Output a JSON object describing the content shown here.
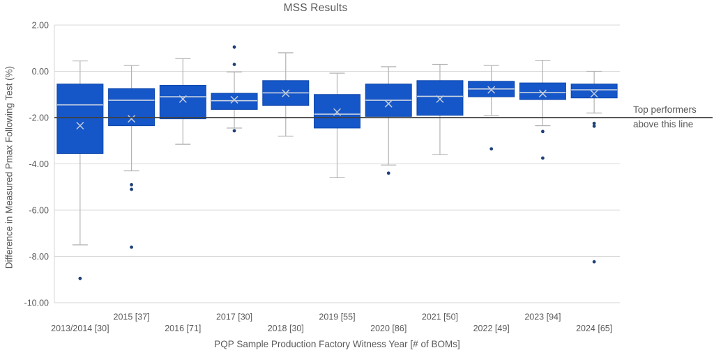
{
  "title": "MSS Results",
  "annotation": {
    "line1": "Top performers",
    "line2": "above this line"
  },
  "colors": {
    "box_fill": "#1556C8",
    "box_border": "#0E47AB",
    "whisker": "#B3B3B3",
    "median_line": "#C9D2E0",
    "mean_marker": "#C4CEDE",
    "outlier": "#1F4179",
    "grid": "#D9D9D9",
    "axis_line": "#D6D6D6",
    "axis_text": "#595959",
    "reference_line": "#404040"
  },
  "chart_data": {
    "type": "boxplot",
    "title": "MSS Results",
    "xlabel": "PQP Sample Production Factory Witness Year [# of BOMs]",
    "ylabel": "Difference in Measured Pmax Following Test (%)",
    "ylim": [
      -10,
      2
    ],
    "yticks": [
      2,
      0,
      -2,
      -4,
      -6,
      -8,
      -10
    ],
    "ytick_labels": [
      "2.00",
      "0.00",
      "-2.00",
      "-4.00",
      "-6.00",
      "-8.00",
      "-10.00"
    ],
    "grid": true,
    "reference_line": {
      "y": -2,
      "label": "Top performers above this line"
    },
    "categories": [
      "2013/2014 [30]",
      "2015 [37]",
      "2016 [71]",
      "2017 [30]",
      "2018 [30]",
      "2019 [55]",
      "2020 [86]",
      "2021 [50]",
      "2022 [49]",
      "2023 [94]",
      "2024 [65]"
    ],
    "series": [
      {
        "category": "2013/2014 [30]",
        "whisker_high": 0.45,
        "q3": -0.55,
        "median": -1.45,
        "mean": -2.35,
        "q1": -3.55,
        "whisker_low": -7.5,
        "outliers": [
          -8.95
        ]
      },
      {
        "category": "2015 [37]",
        "whisker_high": 0.25,
        "q3": -0.75,
        "median": -1.25,
        "mean": -2.05,
        "q1": -2.35,
        "whisker_low": -4.3,
        "outliers": [
          -4.9,
          -5.1,
          -7.6
        ]
      },
      {
        "category": "2016 [71]",
        "whisker_high": 0.55,
        "q3": -0.6,
        "median": -1.1,
        "mean": -1.2,
        "q1": -2.05,
        "whisker_low": -3.15,
        "outliers": []
      },
      {
        "category": "2017 [30]",
        "whisker_high": -0.03,
        "q3": -0.95,
        "median": -1.27,
        "mean": -1.23,
        "q1": -1.65,
        "whisker_low": -2.45,
        "outliers": [
          1.05,
          0.3,
          -2.57
        ]
      },
      {
        "category": "2018 [30]",
        "whisker_high": 0.8,
        "q3": -0.4,
        "median": -0.93,
        "mean": -0.95,
        "q1": -1.47,
        "whisker_low": -2.8,
        "outliers": []
      },
      {
        "category": "2019 [55]",
        "whisker_high": -0.08,
        "q3": -1.0,
        "median": -1.85,
        "mean": -1.76,
        "q1": -2.45,
        "whisker_low": -4.6,
        "outliers": []
      },
      {
        "category": "2020 [86]",
        "whisker_high": 0.2,
        "q3": -0.55,
        "median": -1.25,
        "mean": -1.4,
        "q1": -1.95,
        "whisker_low": -4.05,
        "outliers": [
          -4.4
        ]
      },
      {
        "category": "2021 [50]",
        "whisker_high": 0.3,
        "q3": -0.4,
        "median": -1.08,
        "mean": -1.2,
        "q1": -1.9,
        "whisker_low": -3.6,
        "outliers": []
      },
      {
        "category": "2022 [49]",
        "whisker_high": 0.25,
        "q3": -0.43,
        "median": -0.76,
        "mean": -0.8,
        "q1": -1.1,
        "whisker_low": -1.9,
        "outliers": [
          -3.35
        ]
      },
      {
        "category": "2023 [94]",
        "whisker_high": 0.48,
        "q3": -0.5,
        "median": -0.92,
        "mean": -0.96,
        "q1": -1.22,
        "whisker_low": -2.35,
        "outliers": [
          -2.6,
          -3.75
        ]
      },
      {
        "category": "2024 [65]",
        "whisker_high": 0.0,
        "q3": -0.55,
        "median": -0.8,
        "mean": -0.97,
        "q1": -1.15,
        "whisker_low": -1.8,
        "outliers": [
          -2.25,
          -2.37,
          -8.23
        ]
      }
    ]
  }
}
